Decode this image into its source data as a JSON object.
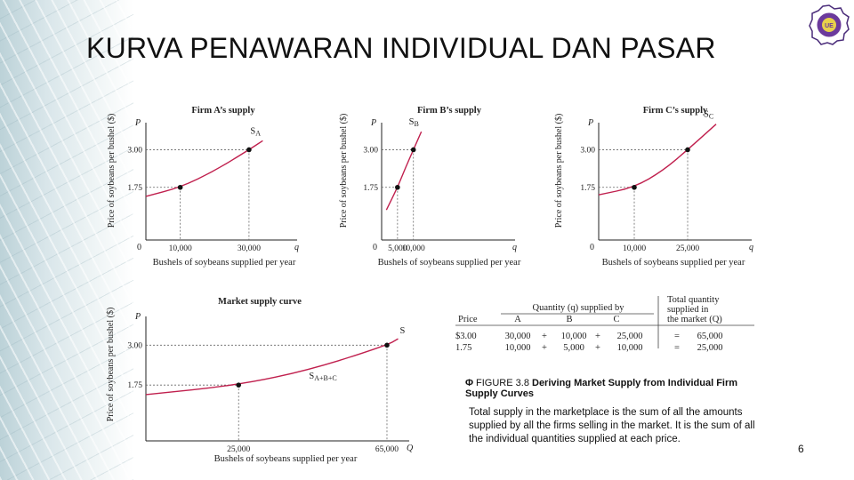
{
  "slide": {
    "title": "KURVA PENAWARAN INDIVIDUAL DAN PASAR",
    "page_number": "6"
  },
  "caption": {
    "icon": "figure-icon",
    "prefix": "FIGURE 3.8",
    "title": "Deriving Market Supply from Individual Firm Supply Curves",
    "body": "Total supply in the marketplace is the sum of all the amounts supplied by all the firms selling in the market. It is the sum of all the individual quantities supplied at each price."
  },
  "colors": {
    "curve": "#c0204e",
    "axis": "#222222",
    "dashed": "#666666"
  },
  "chart_data": [
    {
      "type": "line",
      "title": "Firm A’s supply",
      "xlabel": "Bushels of soybeans supplied per year",
      "ylabel": "Price of soybeans per bushel ($)",
      "axis_x": "q",
      "axis_y": "P",
      "origin": "0",
      "curve_label": "S",
      "curve_sub": "A",
      "xlim": [
        0,
        44000
      ],
      "ylim": [
        0,
        3.9
      ],
      "x_ticks": [
        {
          "v": 10000,
          "label": "10,000"
        },
        {
          "v": 30000,
          "label": "30,000"
        }
      ],
      "y_ticks": [
        {
          "v": 1.75,
          "label": "1.75"
        },
        {
          "v": 3.0,
          "label": "3.00"
        }
      ],
      "points": [
        {
          "x": 10000,
          "y": 1.75
        },
        {
          "x": 30000,
          "y": 3.0
        }
      ],
      "curve": [
        [
          0,
          1.45
        ],
        [
          10000,
          1.75
        ],
        [
          20000,
          2.3
        ],
        [
          30000,
          3.0
        ],
        [
          34000,
          3.3
        ]
      ]
    },
    {
      "type": "line",
      "title": "Firm B’s supply",
      "xlabel": "Bushels of soybeans supplied per year",
      "ylabel": "Price of soybeans per bushel ($)",
      "axis_x": "q",
      "axis_y": "P",
      "origin": "0",
      "curve_label": "S",
      "curve_sub": "B",
      "xlim": [
        0,
        42000
      ],
      "ylim": [
        0,
        3.9
      ],
      "x_ticks": [
        {
          "v": 5000,
          "label": "5,000"
        },
        {
          "v": 10000,
          "label": "10,000"
        }
      ],
      "y_ticks": [
        {
          "v": 1.75,
          "label": "1.75"
        },
        {
          "v": 3.0,
          "label": "3.00"
        }
      ],
      "points": [
        {
          "x": 5000,
          "y": 1.75
        },
        {
          "x": 10000,
          "y": 3.0
        }
      ],
      "curve": [
        [
          1500,
          1.0
        ],
        [
          5000,
          1.75
        ],
        [
          7500,
          2.4
        ],
        [
          10000,
          3.0
        ],
        [
          12500,
          3.6
        ]
      ]
    },
    {
      "type": "line",
      "title": "Firm C’s supply",
      "xlabel": "Bushels of soybeans supplied per year",
      "ylabel": "Price of soybeans per bushel ($)",
      "axis_x": "q",
      "axis_y": "P",
      "origin": "0",
      "curve_label": "S",
      "curve_sub": "C",
      "xlim": [
        0,
        43000
      ],
      "ylim": [
        0,
        3.9
      ],
      "x_ticks": [
        {
          "v": 10000,
          "label": "10,000"
        },
        {
          "v": 25000,
          "label": "25,000"
        }
      ],
      "y_ticks": [
        {
          "v": 1.75,
          "label": "1.75"
        },
        {
          "v": 3.0,
          "label": "3.00"
        }
      ],
      "points": [
        {
          "x": 10000,
          "y": 1.75
        },
        {
          "x": 25000,
          "y": 3.0
        }
      ],
      "curve": [
        [
          0,
          1.5
        ],
        [
          10000,
          1.75
        ],
        [
          18000,
          2.3
        ],
        [
          25000,
          3.0
        ],
        [
          33000,
          3.85
        ]
      ]
    },
    {
      "type": "line",
      "title": "Market supply curve",
      "xlabel": "Bushels of soybeans supplied per year",
      "ylabel": "Price of soybeans per bushel ($)",
      "axis_x": "Q",
      "axis_y": "P",
      "origin": "",
      "curve_label": "S",
      "curve_sub": "A+B+C",
      "curve_label2": "S",
      "xlim": [
        0,
        71000
      ],
      "ylim": [
        0,
        3.9
      ],
      "x_ticks": [
        {
          "v": 25000,
          "label": "25,000"
        },
        {
          "v": 65000,
          "label": "65,000"
        }
      ],
      "y_ticks": [
        {
          "v": 1.75,
          "label": "1.75"
        },
        {
          "v": 3.0,
          "label": "3.00"
        }
      ],
      "points": [
        {
          "x": 25000,
          "y": 1.75
        },
        {
          "x": 65000,
          "y": 3.0
        }
      ],
      "curve": [
        [
          0,
          1.45
        ],
        [
          25000,
          1.75
        ],
        [
          45000,
          2.25
        ],
        [
          65000,
          3.0
        ],
        [
          68000,
          3.2
        ]
      ]
    },
    {
      "type": "table",
      "header_group": "Quantity (q) supplied by",
      "header_total": [
        "Total quantity",
        "supplied in",
        "the market (Q)"
      ],
      "columns": [
        "Price",
        "A",
        "B",
        "C"
      ],
      "rows": [
        {
          "price": "$3.00",
          "a": "30,000",
          "b": "10,000",
          "c": "25,000",
          "total": "65,000",
          "op1": "+",
          "op2": "+",
          "eq": "="
        },
        {
          "price": "1.75",
          "a": "10,000",
          "b": "5,000",
          "c": "10,000",
          "total": "25,000",
          "op1": "+",
          "op2": "+",
          "eq": "="
        }
      ]
    }
  ]
}
